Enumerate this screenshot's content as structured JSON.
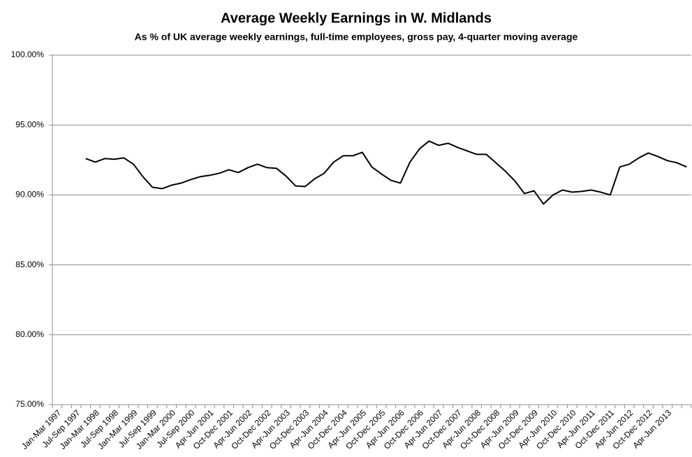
{
  "chart_data": {
    "type": "line",
    "title": "Average Weekly Earnings in W. Midlands",
    "subtitle": "As % of UK average weekly earnings, full-time employees,  gross pay, 4-quarter moving average",
    "categories": [
      "Jan-Mar 1997",
      null,
      "Jul-Sep 1997",
      null,
      "Jan-Mar 1998",
      null,
      "Jul-Sep 1998",
      null,
      "Jan-Mar 1999",
      null,
      "Jul-Sep 1999",
      null,
      "Jan-Mar 2000",
      null,
      "Jul-Sep 2000",
      null,
      "Apr-Jun 2001",
      null,
      "Oct-Dec 2001",
      null,
      "Apr-Jun 2002",
      null,
      "Oct-Dec 2002",
      null,
      "Apr-Jun 2003",
      null,
      "Oct-Dec 2003",
      null,
      "Apr-Jun 2004",
      null,
      "Oct-Dec 2004",
      null,
      "Apr-Jun 2005",
      null,
      "Oct-Dec 2005",
      null,
      "Apr-Jun 2006",
      null,
      "Oct-Dec 2006",
      null,
      "Apr-Jun 2007",
      null,
      "Oct-Dec 2007",
      null,
      "Apr-Jun 2008",
      null,
      "Oct-Dec 2008",
      null,
      "Apr-Jun 2009",
      null,
      "Oct-Dec 2009",
      null,
      "Apr-Jun 2010",
      null,
      "Oct-Dec 2010",
      null,
      "Apr-Jun 2011",
      null,
      "Oct-Dec 2011",
      null,
      "Apr-Jun 2012",
      null,
      "Oct-Dec 2012",
      null,
      "Apr-Jun 2013",
      null,
      null
    ],
    "series": [
      {
        "color": "#000000",
        "values": [
          null,
          null,
          null,
          92.6,
          92.35,
          92.6,
          92.55,
          92.65,
          92.2,
          91.3,
          90.55,
          90.45,
          90.7,
          90.85,
          91.1,
          91.3,
          91.4,
          91.55,
          91.8,
          91.6,
          91.95,
          92.2,
          91.95,
          91.9,
          91.35,
          90.65,
          90.6,
          91.15,
          91.55,
          92.35,
          92.8,
          92.8,
          93.05,
          92.0,
          91.5,
          91.05,
          90.85,
          92.35,
          93.3,
          93.85,
          93.55,
          93.7,
          93.4,
          93.15,
          92.9,
          92.9,
          92.3,
          91.7,
          91.0,
          90.1,
          90.3,
          89.35,
          90.0,
          90.35,
          90.2,
          90.25,
          90.35,
          90.2,
          90.0,
          92.0,
          92.2,
          92.65,
          93.0,
          92.75,
          92.45,
          92.3,
          92.0
        ]
      }
    ],
    "ylim": [
      75,
      100
    ],
    "yticks": [
      {
        "value": 75,
        "label": "75.00%"
      },
      {
        "value": 80,
        "label": "80.00%"
      },
      {
        "value": 85,
        "label": "85.00%"
      },
      {
        "value": 90,
        "label": "90.00%"
      },
      {
        "value": 95,
        "label": "95.00%"
      },
      {
        "value": 100,
        "label": "100.00%"
      }
    ],
    "grid": true
  }
}
